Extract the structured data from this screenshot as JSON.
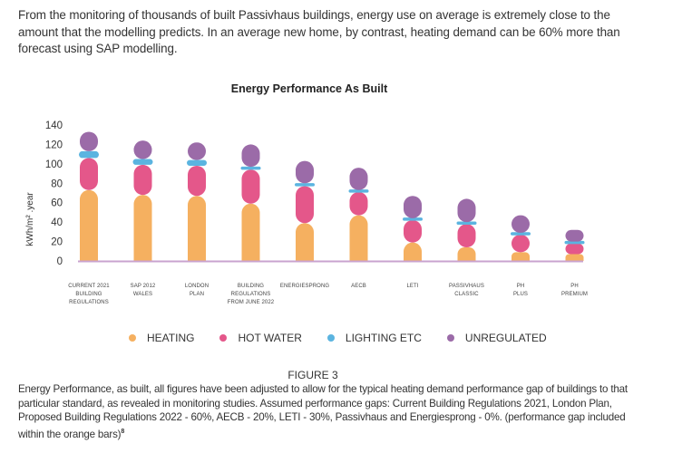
{
  "intro_text": "From the monitoring of thousands of built Passivhaus buildings, energy use on average is extremely close to the amount that the modelling predicts. In an average new home, by contrast, heating demand can be 60% more than forecast using SAP modelling.",
  "figure_label": "FIGURE 3",
  "caption": {
    "text": "Energy Performance, as built, all figures have been adjusted to allow for the typical heating demand performance gap of buildings to that particular standard, as revealed in monitoring studies. Assumed performance gaps: Current Building Regulations 2021, London Plan, Proposed Building Regulations 2022 - 60%, AECB - 20%, LETI - 30%, Passivhaus and Energiesprong - 0%. (performance gap included within the orange bars)",
    "footnote": "8"
  },
  "chart_data": {
    "type": "bar",
    "stacked": true,
    "title": "Energy Performance As Built",
    "xlabel": "",
    "ylabel": "kWh/m² .year",
    "ylim": [
      0,
      140
    ],
    "yticks": [
      0,
      20,
      40,
      60,
      80,
      100,
      120,
      140
    ],
    "grid": false,
    "legend_position": "bottom",
    "categories": [
      [
        "CURRENT 2021",
        "BUILDING",
        "REGULATIONS"
      ],
      [
        "SAP 2012",
        "WALES"
      ],
      [
        "LONDON",
        "PLAN"
      ],
      [
        "BUILDING",
        "REGULATIONS",
        "FROM JUNE 2022"
      ],
      [
        "ENERGIESPRONG"
      ],
      [
        "AECB"
      ],
      [
        "LETI"
      ],
      [
        "PASSIVHAUS",
        "CLASSIC"
      ],
      [
        "PH",
        "PLUS"
      ],
      [
        "PH",
        "PREMIUM"
      ]
    ],
    "series": [
      {
        "name": "HEATING",
        "color": "#F5B060",
        "values": [
          73,
          68,
          67,
          59,
          39,
          47,
          19,
          14,
          9,
          7
        ]
      },
      {
        "name": "HOT WATER",
        "color": "#E4578A",
        "values": [
          33,
          31,
          31,
          35,
          38,
          24,
          23,
          24,
          18,
          11
        ]
      },
      {
        "name": "LIGHTING ETC",
        "color": "#5BB4E0",
        "values": [
          7,
          6,
          6,
          3,
          3,
          2,
          2,
          2,
          2,
          2
        ]
      },
      {
        "name": "UNREGULATED",
        "color": "#9B6BA8",
        "values": [
          20,
          19,
          18,
          23,
          23,
          23,
          23,
          24,
          18,
          12
        ]
      }
    ],
    "axis_color": "#C9A3CF"
  }
}
